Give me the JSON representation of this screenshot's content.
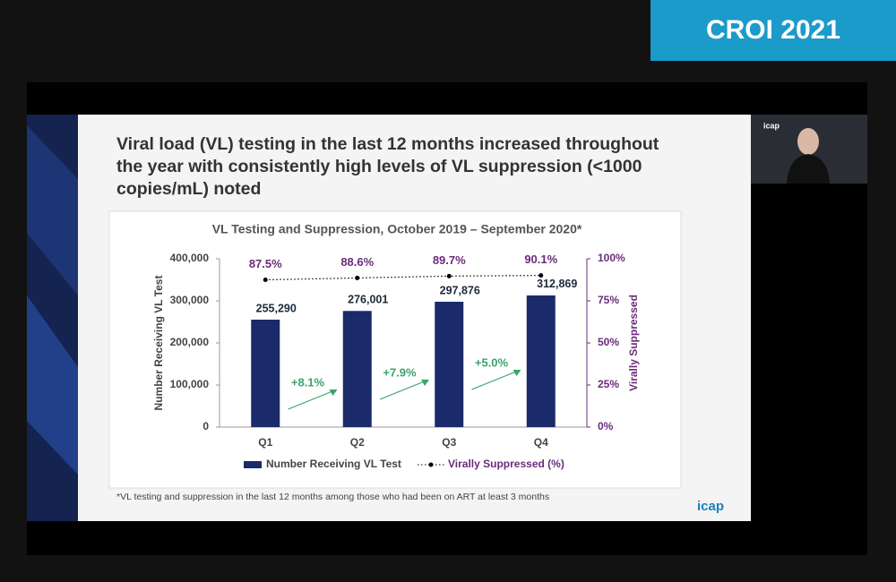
{
  "banner": "CROI 2021",
  "slide_title": [
    "Viral load (VL) testing in the last 12 months increased throughout",
    "the year with consistently high levels of VL suppression (<1000",
    "copies/mL) noted"
  ],
  "footnote": "*VL testing and suppression in the last 12 months among those who had been on ART at least 3 months",
  "logo": "icap",
  "chart_data": {
    "type": "bar",
    "title": "VL Testing and Suppression, October 2019 – September 2020*",
    "categories": [
      "Q1",
      "Q2",
      "Q3",
      "Q4"
    ],
    "ylabel": "Number Receiving VL Test",
    "y2label": "Virally Suppressed",
    "ylim": [
      0,
      400000
    ],
    "yticks": [
      0,
      {
        "value": 100000,
        "label": "100,000"
      },
      {
        "value": 200000,
        "label": "200,000"
      },
      {
        "value": 300000,
        "label": "300,000"
      },
      {
        "value": 400000,
        "label": "400,000"
      }
    ],
    "y2lim": [
      0,
      100
    ],
    "y2ticks": [
      {
        "value": 0,
        "label": "0%"
      },
      {
        "value": 25,
        "label": "25%"
      },
      {
        "value": 50,
        "label": "50%"
      },
      {
        "value": 75,
        "label": "75%"
      },
      {
        "value": 100,
        "label": "100%"
      }
    ],
    "series": [
      {
        "name": "Number Receiving VL Test",
        "type": "bar",
        "color": "#1b2a6b",
        "values": [
          255290,
          276001,
          297876,
          312869
        ],
        "value_labels": [
          "255,290",
          "276,001",
          "297,876",
          "312,869"
        ]
      },
      {
        "name": "Virally Suppressed (%)",
        "type": "line",
        "axis": "y2",
        "color": "#000000",
        "label_color": "#6b2c7a",
        "values": [
          87.5,
          88.6,
          89.7,
          90.1
        ],
        "value_labels": [
          "87.5%",
          "88.6%",
          "89.7%",
          "90.1%"
        ]
      }
    ],
    "annotations": [
      "+8.1%",
      "+7.9%",
      "+5.0%"
    ],
    "annotation_color": "#3aa36a"
  }
}
